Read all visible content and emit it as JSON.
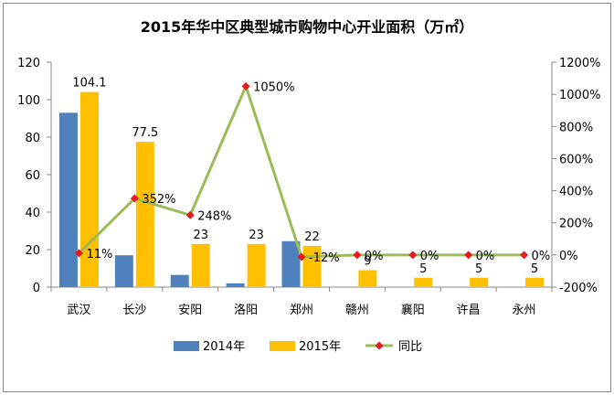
{
  "chart_data": {
    "type": "bar",
    "title": "2015年华中区典型城市购物中心开业面积（万㎡）",
    "categories": [
      "武汉",
      "长沙",
      "安阳",
      "洛阳",
      "郑州",
      "赣州",
      "襄阳",
      "许昌",
      "永州"
    ],
    "series": [
      {
        "name": "2014年",
        "type": "bar",
        "axis": "left",
        "color": "#4F81BD",
        "values": [
          93,
          17,
          6.5,
          2,
          24.5,
          0,
          0,
          0,
          0
        ]
      },
      {
        "name": "2015年",
        "type": "bar",
        "axis": "left",
        "color": "#FFC000",
        "values": [
          104.1,
          77.5,
          23,
          23,
          22,
          9,
          5,
          5,
          5
        ],
        "labels": [
          "104.1",
          "77.5",
          "23",
          "23",
          "22",
          "9",
          "5",
          "5",
          "5"
        ]
      },
      {
        "name": "同比",
        "type": "line",
        "axis": "right",
        "color": "#9BBB59",
        "marker_color": "#E41A1C",
        "values": [
          11,
          352,
          248,
          1050,
          -12,
          0,
          0,
          0,
          0
        ],
        "labels": [
          "11%",
          "352%",
          "248%",
          "1050%",
          "-12%",
          "0%",
          "0%",
          "0%",
          "0%"
        ]
      }
    ],
    "y_left": {
      "ylim": [
        0,
        120
      ],
      "ticks": [
        0,
        20,
        40,
        60,
        80,
        100,
        120
      ],
      "tick_labels": [
        "0",
        "20",
        "40",
        "60",
        "80",
        "100",
        "120"
      ]
    },
    "y_right": {
      "ylim": [
        -200,
        1200
      ],
      "ticks": [
        -200,
        0,
        200,
        400,
        600,
        800,
        1000,
        1200
      ],
      "tick_labels": [
        "-200%",
        "0%",
        "200%",
        "400%",
        "600%",
        "800%",
        "1000%",
        "1200%"
      ]
    },
    "grid": false,
    "legend": "bottom"
  }
}
